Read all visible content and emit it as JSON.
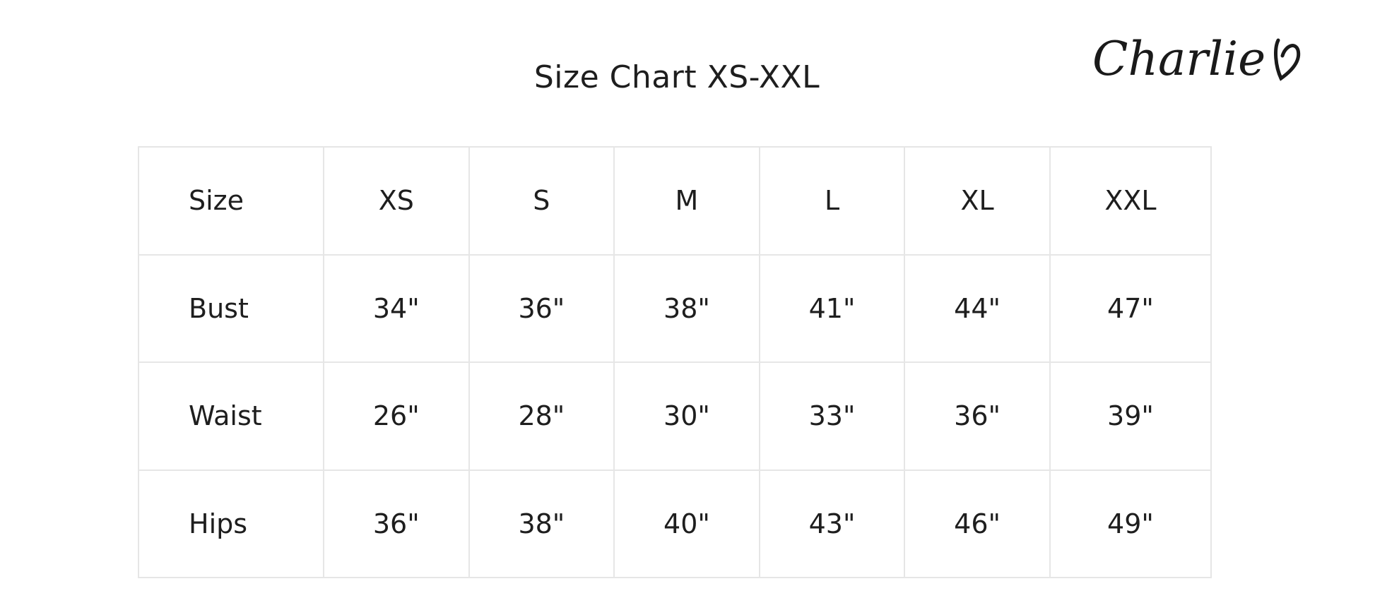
{
  "title": "Size Chart XS-XXL",
  "logo": {
    "text": "Charlie",
    "icon": "heart-icon"
  },
  "table": {
    "header": [
      "Size",
      "XS",
      "S",
      "M",
      "L",
      "XL",
      "XXL"
    ],
    "rows": [
      [
        "Bust",
        "34\"",
        "36\"",
        "38\"",
        "41\"",
        "44\"",
        "47\""
      ],
      [
        "Waist",
        "26\"",
        "28\"",
        "30\"",
        "33\"",
        "36\"",
        "39\""
      ],
      [
        "Hips",
        "36\"",
        "38\"",
        "40\"",
        "43\"",
        "46\"",
        "49\""
      ]
    ]
  }
}
